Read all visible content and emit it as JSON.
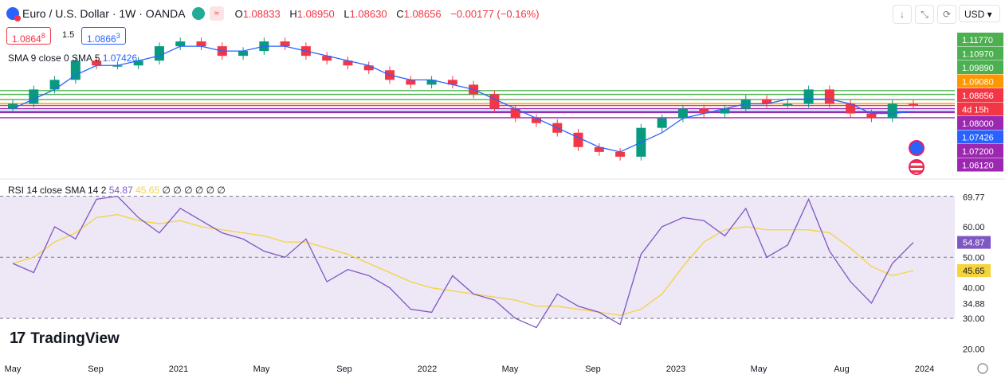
{
  "header": {
    "symbol": "Euro / U.S. Dollar · 1W · OANDA",
    "open_label": "O",
    "open": "1.08833",
    "high_label": "H",
    "high": "1.08950",
    "low_label": "L",
    "low": "1.08630",
    "close_label": "C",
    "close": "1.08656",
    "change": "−0.00177 (−0.16%)"
  },
  "trade": {
    "sell": "1.0864",
    "sell_sup": "8",
    "spread": "1.5",
    "buy": "1.0866",
    "buy_sup": "3"
  },
  "toolbar": {
    "currency": "USD",
    "icons": [
      "arrow-down-icon",
      "collapse-icon",
      "refresh-icon"
    ]
  },
  "indicator_sma": {
    "label": "SMA 9 close 0 SMA 5",
    "value": "1.07426"
  },
  "indicator_rsi": {
    "label": "RSI 14 close SMA 14 2",
    "value": "54.87",
    "sma_value": "45.65",
    "zeros": "∅ ∅ ∅ ∅ ∅ ∅"
  },
  "logo": {
    "text": "TradingView"
  },
  "chart_data": [
    {
      "type": "candlestick",
      "title": "Euro / U.S. Dollar · 1W · OANDA",
      "x_ticks": [
        "May",
        "Sep",
        "2021",
        "May",
        "Sep",
        "2022",
        "May",
        "Sep",
        "2023",
        "May",
        "Aug",
        "2024"
      ],
      "y_ticks": [
        "1.11770",
        "1.10970",
        "1.09890",
        "1.09080",
        "1.08656",
        "4d 15h",
        "1.08000",
        "1.07426",
        "1.07200",
        "1.06120"
      ],
      "ylim": [
        0.95,
        1.24
      ],
      "x": [
        "2020-05",
        "2020-06",
        "2020-07",
        "2020-08",
        "2020-09",
        "2020-10",
        "2020-11",
        "2020-12",
        "2021-01",
        "2021-02",
        "2021-03",
        "2021-04",
        "2021-05",
        "2021-06",
        "2021-07",
        "2021-08",
        "2021-09",
        "2021-10",
        "2021-11",
        "2021-12",
        "2022-01",
        "2022-02",
        "2022-03",
        "2022-04",
        "2022-05",
        "2022-06",
        "2022-07",
        "2022-08",
        "2022-09",
        "2022-10",
        "2022-11",
        "2022-12",
        "2023-01",
        "2023-02",
        "2023-03",
        "2023-04",
        "2023-05",
        "2023-06",
        "2023-07",
        "2023-08",
        "2023-09",
        "2023-10",
        "2023-11",
        "2023-12"
      ],
      "series": [
        {
          "name": "EURUSD",
          "values": [
            1.09,
            1.12,
            1.14,
            1.18,
            1.17,
            1.17,
            1.18,
            1.21,
            1.22,
            1.21,
            1.19,
            1.2,
            1.22,
            1.21,
            1.19,
            1.18,
            1.17,
            1.16,
            1.14,
            1.13,
            1.14,
            1.13,
            1.11,
            1.08,
            1.06,
            1.05,
            1.03,
            1.0,
            0.99,
            0.98,
            1.04,
            1.06,
            1.08,
            1.07,
            1.08,
            1.1,
            1.09,
            1.09,
            1.12,
            1.09,
            1.07,
            1.06,
            1.09,
            1.0866
          ]
        },
        {
          "name": "SMA 9",
          "values": [
            1.08,
            1.1,
            1.12,
            1.15,
            1.17,
            1.17,
            1.18,
            1.19,
            1.21,
            1.21,
            1.2,
            1.2,
            1.21,
            1.21,
            1.2,
            1.19,
            1.18,
            1.17,
            1.15,
            1.14,
            1.14,
            1.13,
            1.12,
            1.1,
            1.08,
            1.06,
            1.04,
            1.02,
            1.0,
            0.99,
            1.01,
            1.03,
            1.06,
            1.07,
            1.08,
            1.09,
            1.09,
            1.1,
            1.1,
            1.1,
            1.09,
            1.07,
            1.07,
            1.07426
          ]
        }
      ],
      "levels": [
        {
          "value": "1.11770",
          "color": "#4caf50"
        },
        {
          "value": "1.10970",
          "color": "#4caf50"
        },
        {
          "value": "1.09890",
          "color": "#4caf50"
        },
        {
          "value": "1.09080",
          "color": "#ff9800"
        },
        {
          "value": "1.08656",
          "color": "#f23645"
        },
        {
          "value": "1.08000",
          "color": "#9c27b0"
        },
        {
          "value": "1.07426",
          "color": "#2962ff"
        },
        {
          "value": "1.07200",
          "color": "#9c27b0"
        },
        {
          "value": "1.06120",
          "color": "#9c27b0"
        }
      ],
      "countdown": "4d 15h"
    },
    {
      "type": "line",
      "title": "RSI 14 close SMA 14 2",
      "y_ticks": [
        "69.77",
        "60.00",
        "54.87",
        "50.00",
        "45.65",
        "40.00",
        "34.88",
        "30.00",
        "20.00"
      ],
      "ylim": [
        17,
        73
      ],
      "band": [
        30,
        70
      ],
      "x": [
        "2020-05",
        "2020-06",
        "2020-07",
        "2020-08",
        "2020-09",
        "2020-10",
        "2020-11",
        "2020-12",
        "2021-01",
        "2021-02",
        "2021-03",
        "2021-04",
        "2021-05",
        "2021-06",
        "2021-07",
        "2021-08",
        "2021-09",
        "2021-10",
        "2021-11",
        "2021-12",
        "2022-01",
        "2022-02",
        "2022-03",
        "2022-04",
        "2022-05",
        "2022-06",
        "2022-07",
        "2022-08",
        "2022-09",
        "2022-10",
        "2022-11",
        "2022-12",
        "2023-01",
        "2023-02",
        "2023-03",
        "2023-04",
        "2023-05",
        "2023-06",
        "2023-07",
        "2023-08",
        "2023-09",
        "2023-10",
        "2023-11",
        "2023-12"
      ],
      "series": [
        {
          "name": "RSI",
          "values": [
            48,
            45,
            60,
            56,
            69,
            70,
            63,
            58,
            66,
            62,
            58,
            56,
            52,
            50,
            56,
            42,
            46,
            44,
            40,
            33,
            32,
            44,
            38,
            36,
            30,
            27,
            38,
            34,
            32,
            28,
            51,
            60,
            63,
            62,
            57,
            66,
            50,
            54,
            69,
            52,
            42,
            35,
            48,
            54.87
          ]
        },
        {
          "name": "RSI SMA",
          "values": [
            48,
            50,
            55,
            58,
            63,
            64,
            62,
            61,
            62,
            60,
            59,
            58,
            57,
            55,
            55,
            53,
            51,
            48,
            45,
            42,
            40,
            39,
            38,
            37,
            36,
            34,
            34,
            33,
            32,
            31,
            33,
            38,
            47,
            55,
            59,
            60,
            59,
            59,
            59,
            58,
            53,
            47,
            44,
            45.65
          ]
        }
      ]
    }
  ],
  "colors": {
    "up": "#089981",
    "down": "#f23645",
    "sma": "#2962ff",
    "rsi": "#7e57c2",
    "rsi_sma": "#f5d33d",
    "rsi_band": "#ede7f6"
  }
}
